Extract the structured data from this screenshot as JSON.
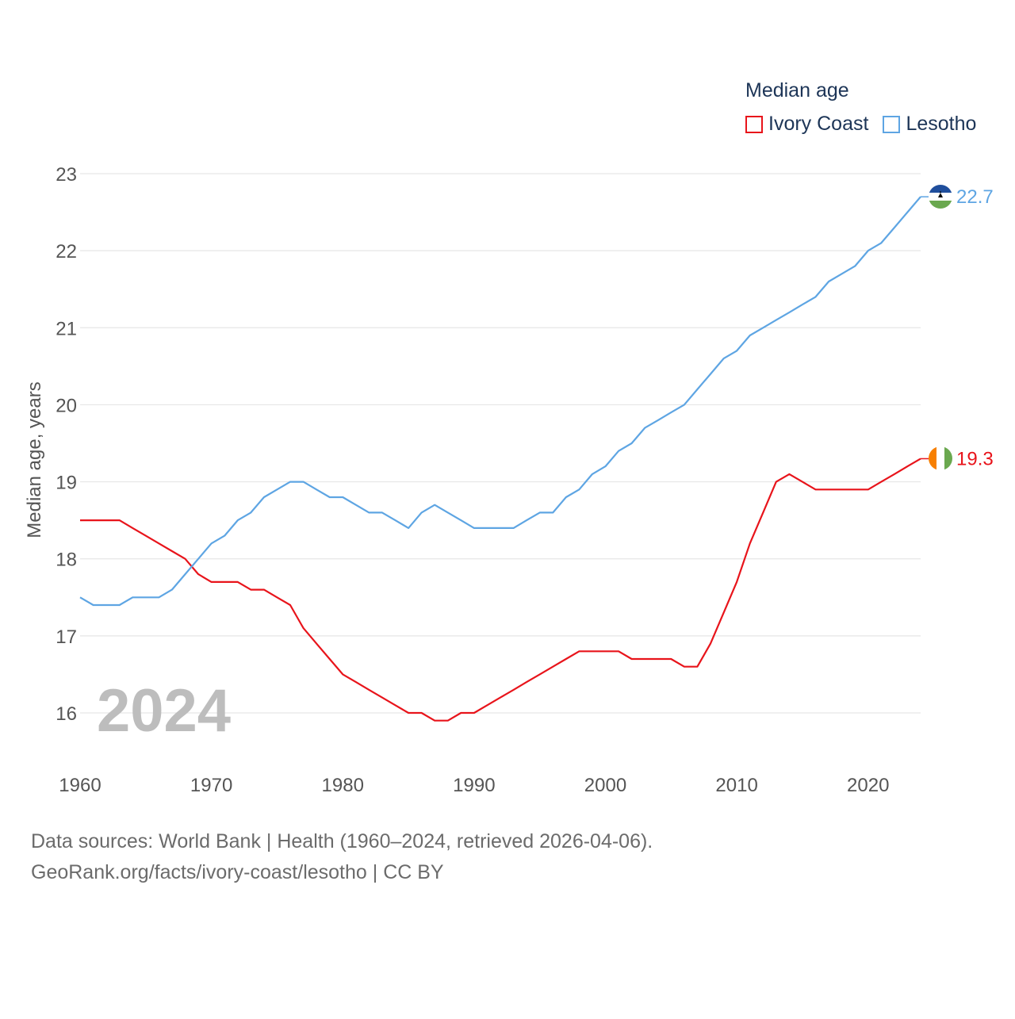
{
  "legend": {
    "title": "Median age",
    "items": [
      {
        "label": "Ivory Coast",
        "color": "#e8141b"
      },
      {
        "label": "Lesotho",
        "color": "#5ea5e3"
      }
    ]
  },
  "year_watermark": "2024",
  "footer": {
    "line1": "Data sources: World Bank | Health (1960–2024, retrieved 2026-04-06).",
    "line2": "GeoRank.org/facts/ivory-coast/lesotho | CC BY"
  },
  "chart_data": {
    "type": "line",
    "title": "Median age",
    "xlabel": "",
    "ylabel": "Median age, years",
    "xlim": [
      1960,
      2024
    ],
    "ylim": [
      15.5,
      23
    ],
    "x_ticks": [
      1960,
      1970,
      1980,
      1990,
      2000,
      2010,
      2020
    ],
    "y_ticks": [
      16,
      17,
      18,
      19,
      20,
      21,
      22,
      23
    ],
    "grid": true,
    "legend_position": "top-right",
    "x": [
      1960,
      1961,
      1962,
      1963,
      1964,
      1965,
      1966,
      1967,
      1968,
      1969,
      1970,
      1971,
      1972,
      1973,
      1974,
      1975,
      1976,
      1977,
      1978,
      1979,
      1980,
      1981,
      1982,
      1983,
      1984,
      1985,
      1986,
      1987,
      1988,
      1989,
      1990,
      1991,
      1992,
      1993,
      1994,
      1995,
      1996,
      1997,
      1998,
      1999,
      2000,
      2001,
      2002,
      2003,
      2004,
      2005,
      2006,
      2007,
      2008,
      2009,
      2010,
      2011,
      2012,
      2013,
      2014,
      2015,
      2016,
      2017,
      2018,
      2019,
      2020,
      2021,
      2022,
      2023,
      2024
    ],
    "series": [
      {
        "name": "Ivory Coast",
        "color": "#e8141b",
        "end_label": "19.3",
        "values": [
          18.5,
          18.5,
          18.5,
          18.5,
          18.4,
          18.3,
          18.2,
          18.1,
          18.0,
          17.8,
          17.7,
          17.7,
          17.7,
          17.6,
          17.6,
          17.5,
          17.4,
          17.1,
          16.9,
          16.7,
          16.5,
          16.4,
          16.3,
          16.2,
          16.1,
          16.0,
          16.0,
          15.9,
          15.9,
          16.0,
          16.0,
          16.1,
          16.2,
          16.3,
          16.4,
          16.5,
          16.6,
          16.7,
          16.8,
          16.8,
          16.8,
          16.8,
          16.7,
          16.7,
          16.7,
          16.7,
          16.6,
          16.6,
          16.9,
          17.3,
          17.7,
          18.2,
          18.6,
          19.0,
          19.1,
          19.0,
          18.9,
          18.9,
          18.9,
          18.9,
          18.9,
          19.0,
          19.1,
          19.2,
          19.3
        ]
      },
      {
        "name": "Lesotho",
        "color": "#5ea5e3",
        "end_label": "22.7",
        "values": [
          17.5,
          17.4,
          17.4,
          17.4,
          17.5,
          17.5,
          17.5,
          17.6,
          17.8,
          18.0,
          18.2,
          18.3,
          18.5,
          18.6,
          18.8,
          18.9,
          19.0,
          19.0,
          18.9,
          18.8,
          18.8,
          18.7,
          18.6,
          18.6,
          18.5,
          18.4,
          18.6,
          18.7,
          18.6,
          18.5,
          18.4,
          18.4,
          18.4,
          18.4,
          18.5,
          18.6,
          18.6,
          18.8,
          18.9,
          19.1,
          19.2,
          19.4,
          19.5,
          19.7,
          19.8,
          19.9,
          20.0,
          20.2,
          20.4,
          20.6,
          20.7,
          20.9,
          21.0,
          21.1,
          21.2,
          21.3,
          21.4,
          21.6,
          21.7,
          21.8,
          22.0,
          22.1,
          22.3,
          22.5,
          22.7
        ]
      }
    ]
  }
}
